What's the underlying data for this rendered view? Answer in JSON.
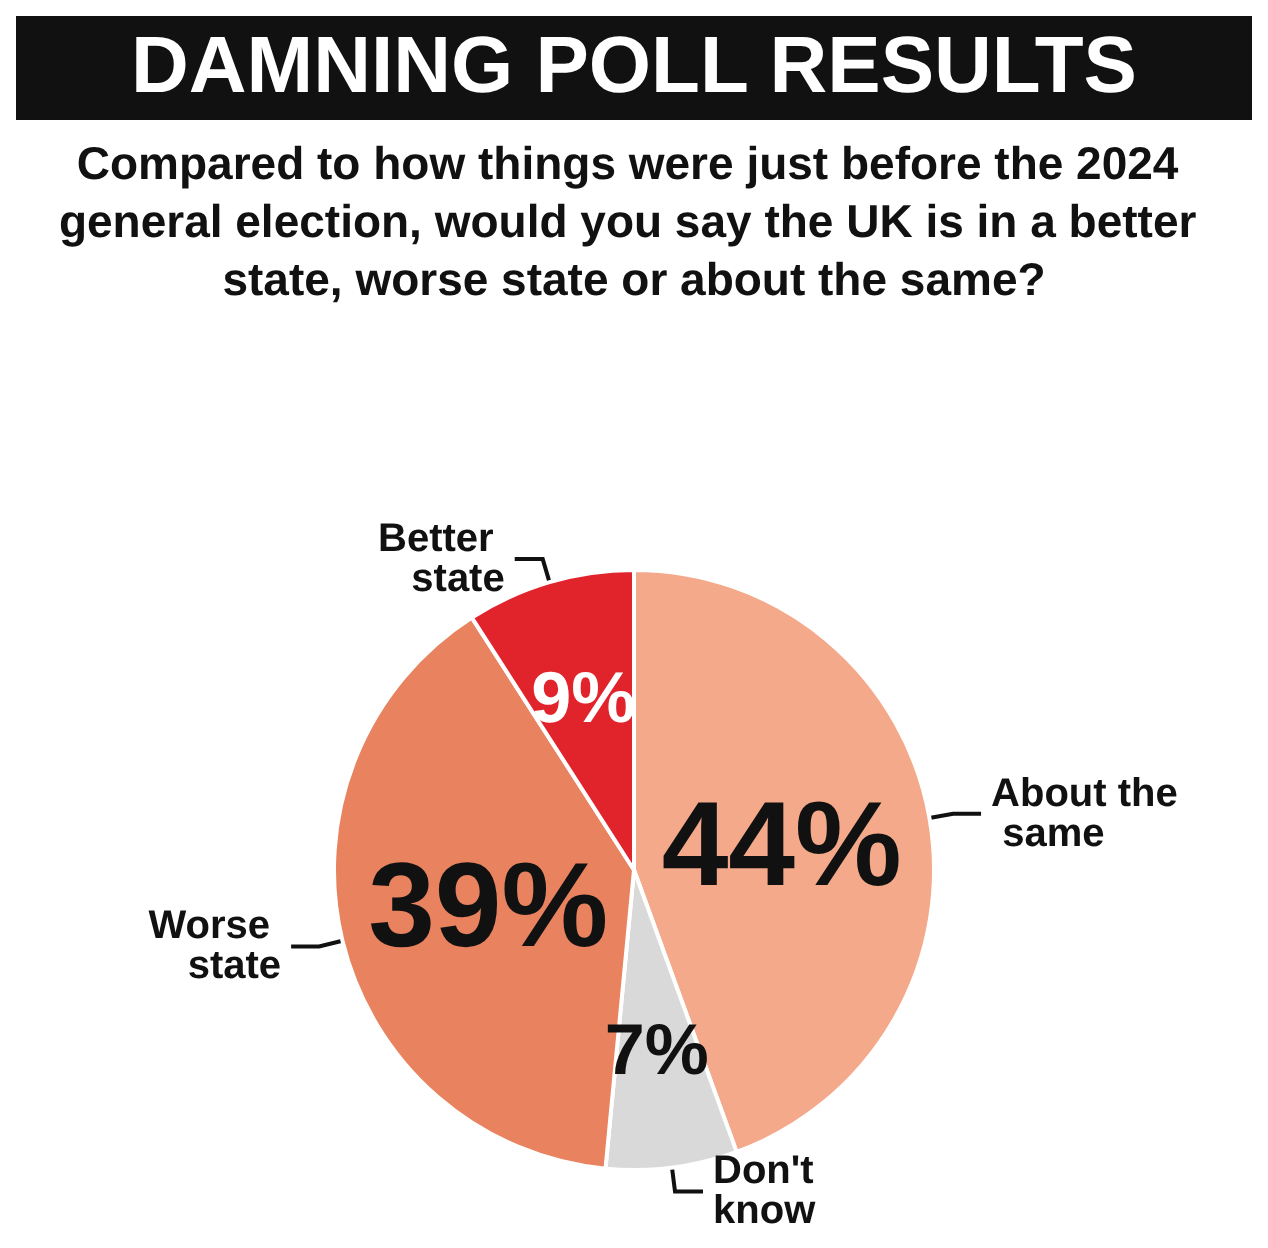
{
  "chart_data": {
    "type": "pie",
    "title": "DAMNING POLL RESULTS",
    "subtitle": "Compared to how things were just before the 2024 general election, would you say the UK is in a better state, worse state or about the same?",
    "categories": [
      "About the same",
      "Don't know",
      "Worse state",
      "Better state"
    ],
    "values": [
      44,
      7,
      39,
      9
    ],
    "colors": [
      "#f3a98a",
      "#d9d9d9",
      "#e8825f",
      "#e1232b"
    ],
    "value_labels": [
      "44%",
      "7%",
      "39%",
      "9%"
    ],
    "legend": false
  }
}
